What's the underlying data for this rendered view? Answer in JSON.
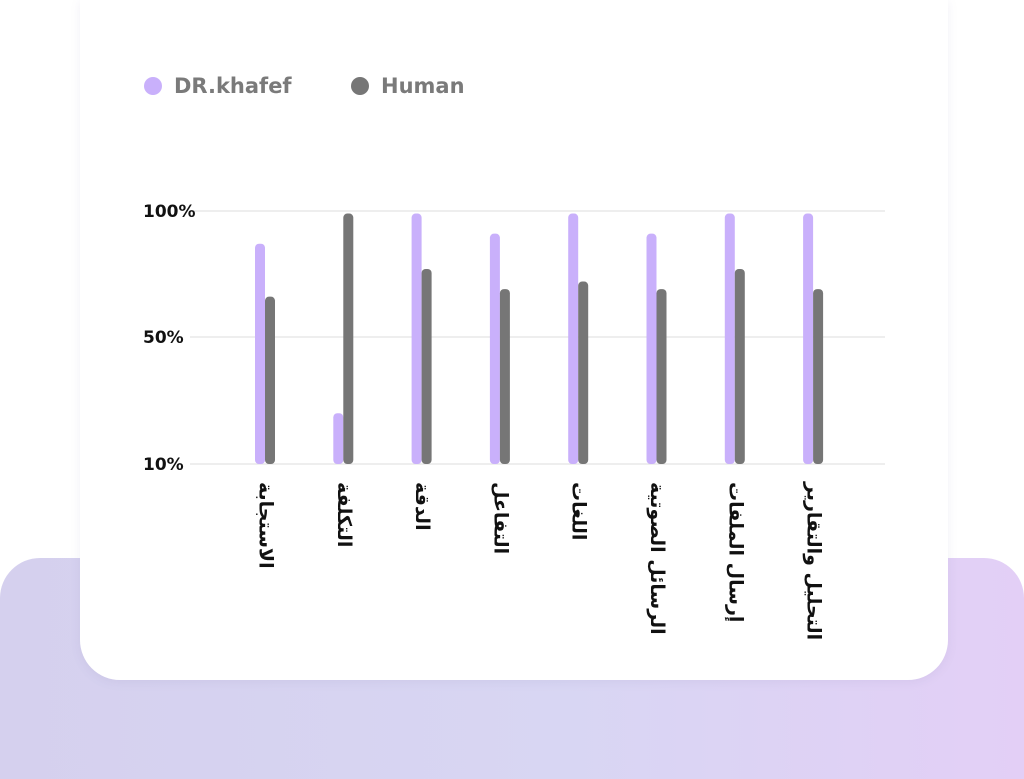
{
  "legend": {
    "drkhafef_label": "DR.khafef",
    "human_label": "Human"
  },
  "colors": {
    "drkhafef": "#c9b0fb",
    "human": "#767676",
    "grid": "#e3e3e3"
  },
  "chart_data": {
    "type": "bar",
    "categories": [
      "الاستجابة",
      "التكلفة",
      "الدقة",
      "التفاعل",
      "اللغات",
      "الرسائل الصوتية",
      "إرسال الملفات",
      "التحليل والتقارير"
    ],
    "series": [
      {
        "name": "DR.khafef",
        "values": [
          87,
          26,
          99,
          91,
          99,
          91,
          99,
          99
        ]
      },
      {
        "name": "Human",
        "values": [
          66,
          99,
          77,
          69,
          72,
          69,
          77,
          69
        ]
      }
    ],
    "y_ticks": [
      {
        "value": 10,
        "label": "10%"
      },
      {
        "value": 50,
        "label": "50%"
      },
      {
        "value": 100,
        "label": "100%"
      }
    ],
    "grid": true,
    "legend_position": "top-left"
  }
}
